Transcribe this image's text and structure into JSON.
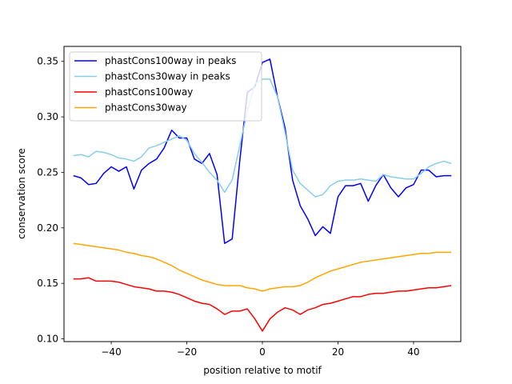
{
  "chart_data": {
    "type": "line",
    "xlabel": "position relative to motif",
    "ylabel": "conservation score",
    "xlim": [
      -52.5,
      52.5
    ],
    "ylim": [
      0.0975,
      0.3635
    ],
    "xticks": [
      -40,
      -20,
      0,
      20,
      40
    ],
    "yticks": [
      0.1,
      0.15,
      0.2,
      0.25,
      0.3,
      0.35
    ],
    "ytick_labels": [
      "0.10",
      "0.15",
      "0.20",
      "0.25",
      "0.30",
      "0.35"
    ],
    "grid": false,
    "legend_position": "top-left",
    "x": [
      -50,
      -48,
      -46,
      -44,
      -42,
      -40,
      -38,
      -36,
      -34,
      -32,
      -30,
      -28,
      -26,
      -24,
      -22,
      -20,
      -18,
      -16,
      -14,
      -12,
      -10,
      -8,
      -6,
      -4,
      -2,
      0,
      2,
      4,
      6,
      8,
      10,
      12,
      14,
      16,
      18,
      20,
      22,
      24,
      26,
      28,
      30,
      32,
      34,
      36,
      38,
      40,
      42,
      44,
      46,
      48,
      50
    ],
    "series": [
      {
        "name": "phastCons100way in peaks",
        "color": "#0000ff",
        "values": [
          0.247,
          0.245,
          0.239,
          0.24,
          0.249,
          0.255,
          0.251,
          0.255,
          0.235,
          0.252,
          0.258,
          0.262,
          0.272,
          0.288,
          0.281,
          0.281,
          0.262,
          0.258,
          0.267,
          0.248,
          0.186,
          0.19,
          0.26,
          0.322,
          0.327,
          0.349,
          0.352,
          0.318,
          0.29,
          0.243,
          0.22,
          0.208,
          0.193,
          0.201,
          0.195,
          0.228,
          0.238,
          0.238,
          0.24,
          0.224,
          0.238,
          0.248,
          0.236,
          0.228,
          0.236,
          0.239,
          0.252,
          0.252,
          0.246,
          0.247,
          0.247
        ]
      },
      {
        "name": "phastCons30way in peaks",
        "color": "#87ceeb",
        "values": [
          0.265,
          0.266,
          0.264,
          0.269,
          0.268,
          0.266,
          0.263,
          0.262,
          0.26,
          0.264,
          0.272,
          0.274,
          0.277,
          0.28,
          0.283,
          0.279,
          0.267,
          0.259,
          0.25,
          0.243,
          0.232,
          0.243,
          0.274,
          0.305,
          0.33,
          0.334,
          0.334,
          0.318,
          0.286,
          0.252,
          0.24,
          0.234,
          0.228,
          0.23,
          0.238,
          0.242,
          0.243,
          0.243,
          0.244,
          0.243,
          0.242,
          0.248,
          0.246,
          0.245,
          0.244,
          0.244,
          0.249,
          0.255,
          0.258,
          0.26,
          0.258
        ]
      },
      {
        "name": "phastCons100way",
        "color": "#ff0000",
        "values": [
          0.154,
          0.154,
          0.155,
          0.152,
          0.152,
          0.152,
          0.151,
          0.149,
          0.147,
          0.146,
          0.145,
          0.143,
          0.143,
          0.142,
          0.14,
          0.137,
          0.134,
          0.132,
          0.131,
          0.127,
          0.122,
          0.125,
          0.125,
          0.127,
          0.118,
          0.107,
          0.118,
          0.124,
          0.128,
          0.126,
          0.122,
          0.126,
          0.128,
          0.131,
          0.132,
          0.134,
          0.136,
          0.138,
          0.138,
          0.14,
          0.141,
          0.141,
          0.142,
          0.143,
          0.143,
          0.144,
          0.145,
          0.146,
          0.146,
          0.147,
          0.148
        ]
      },
      {
        "name": "phastCons30way",
        "color": "#ffa500",
        "values": [
          0.186,
          0.185,
          0.184,
          0.183,
          0.182,
          0.181,
          0.18,
          0.178,
          0.177,
          0.175,
          0.174,
          0.172,
          0.169,
          0.166,
          0.162,
          0.159,
          0.156,
          0.153,
          0.151,
          0.149,
          0.148,
          0.148,
          0.148,
          0.146,
          0.145,
          0.143,
          0.145,
          0.146,
          0.147,
          0.147,
          0.148,
          0.151,
          0.155,
          0.158,
          0.161,
          0.163,
          0.165,
          0.167,
          0.169,
          0.17,
          0.171,
          0.172,
          0.173,
          0.174,
          0.175,
          0.176,
          0.177,
          0.177,
          0.178,
          0.178,
          0.178
        ]
      }
    ]
  }
}
